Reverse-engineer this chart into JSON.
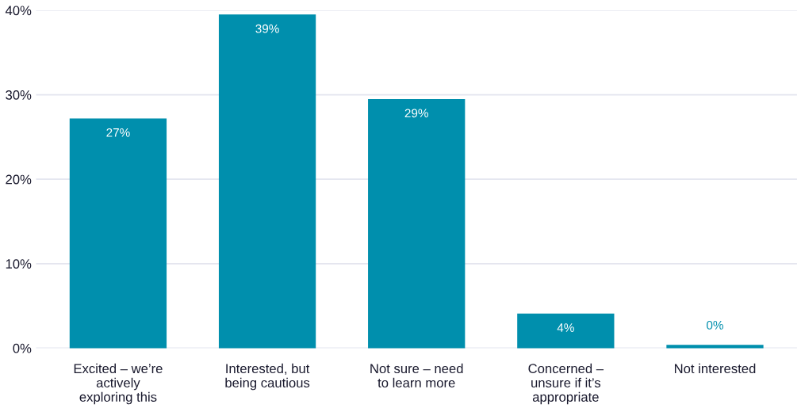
{
  "chart_data": {
    "type": "bar",
    "categories": [
      "Excited – we’re\nactively\nexploring this",
      "Interested, but\nbeing cautious",
      "Not sure – need\nto learn more",
      "Concerned –\nunsure if it’s\nappropriate",
      "Not interested"
    ],
    "values": [
      27.2,
      39.5,
      29.5,
      4.1,
      0.4
    ],
    "value_labels": [
      "27%",
      "39%",
      "29%",
      "4%",
      "0%"
    ],
    "color": "#008fad",
    "ylim": [
      0,
      40
    ],
    "yticks": [
      {
        "value": 0,
        "label": "0%"
      },
      {
        "value": 10,
        "label": "10%"
      },
      {
        "value": 20,
        "label": "20%"
      },
      {
        "value": 30,
        "label": "30%"
      },
      {
        "value": 40,
        "label": "40%"
      }
    ],
    "grid": "y"
  }
}
